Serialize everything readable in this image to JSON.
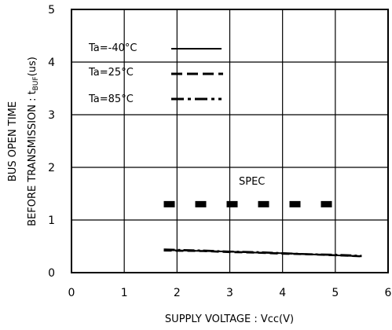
{
  "chart_data": {
    "type": "line",
    "title": "",
    "xlabel": "SUPPLY VOLTAGE : Vcc(V)",
    "ylabel_line1": "BUS OPEN TIME",
    "ylabel_line2": "BEFORE TRANSMISSION : t",
    "ylabel_sub": "BUF",
    "ylabel_unit": "(us)",
    "xlim": [
      0,
      6
    ],
    "ylim": [
      0,
      5
    ],
    "xticks": [
      "0",
      "1",
      "2",
      "3",
      "4",
      "5",
      "6"
    ],
    "yticks": [
      "0",
      "1",
      "2",
      "3",
      "4",
      "5"
    ],
    "grid": true,
    "legend_position": "top-left",
    "series": [
      {
        "name": "Ta=-40°C",
        "style": "solid",
        "color": "#000000",
        "x": [
          1.75,
          2.5,
          3.0,
          3.5,
          4.0,
          4.5,
          5.0,
          5.5
        ],
        "y": [
          0.43,
          0.41,
          0.4,
          0.38,
          0.37,
          0.35,
          0.33,
          0.31
        ]
      },
      {
        "name": "Ta=25°C",
        "style": "dashed",
        "color": "#000000",
        "x": [
          1.75,
          2.5,
          3.0,
          3.5,
          4.0,
          4.5,
          5.0,
          5.5
        ],
        "y": [
          0.42,
          0.41,
          0.39,
          0.38,
          0.36,
          0.35,
          0.33,
          0.31
        ]
      },
      {
        "name": "Ta=85°C",
        "style": "dashdot",
        "color": "#000000",
        "x": [
          1.75,
          2.5,
          3.0,
          3.5,
          4.0,
          4.5,
          5.0,
          5.5
        ],
        "y": [
          0.44,
          0.42,
          0.4,
          0.39,
          0.37,
          0.35,
          0.34,
          0.32
        ]
      },
      {
        "name": "SPEC",
        "style": "spec-dashed",
        "color": "#000000",
        "x": [
          1.75,
          5.1
        ],
        "y": [
          1.3,
          1.3
        ]
      }
    ],
    "annotation": "SPEC"
  }
}
